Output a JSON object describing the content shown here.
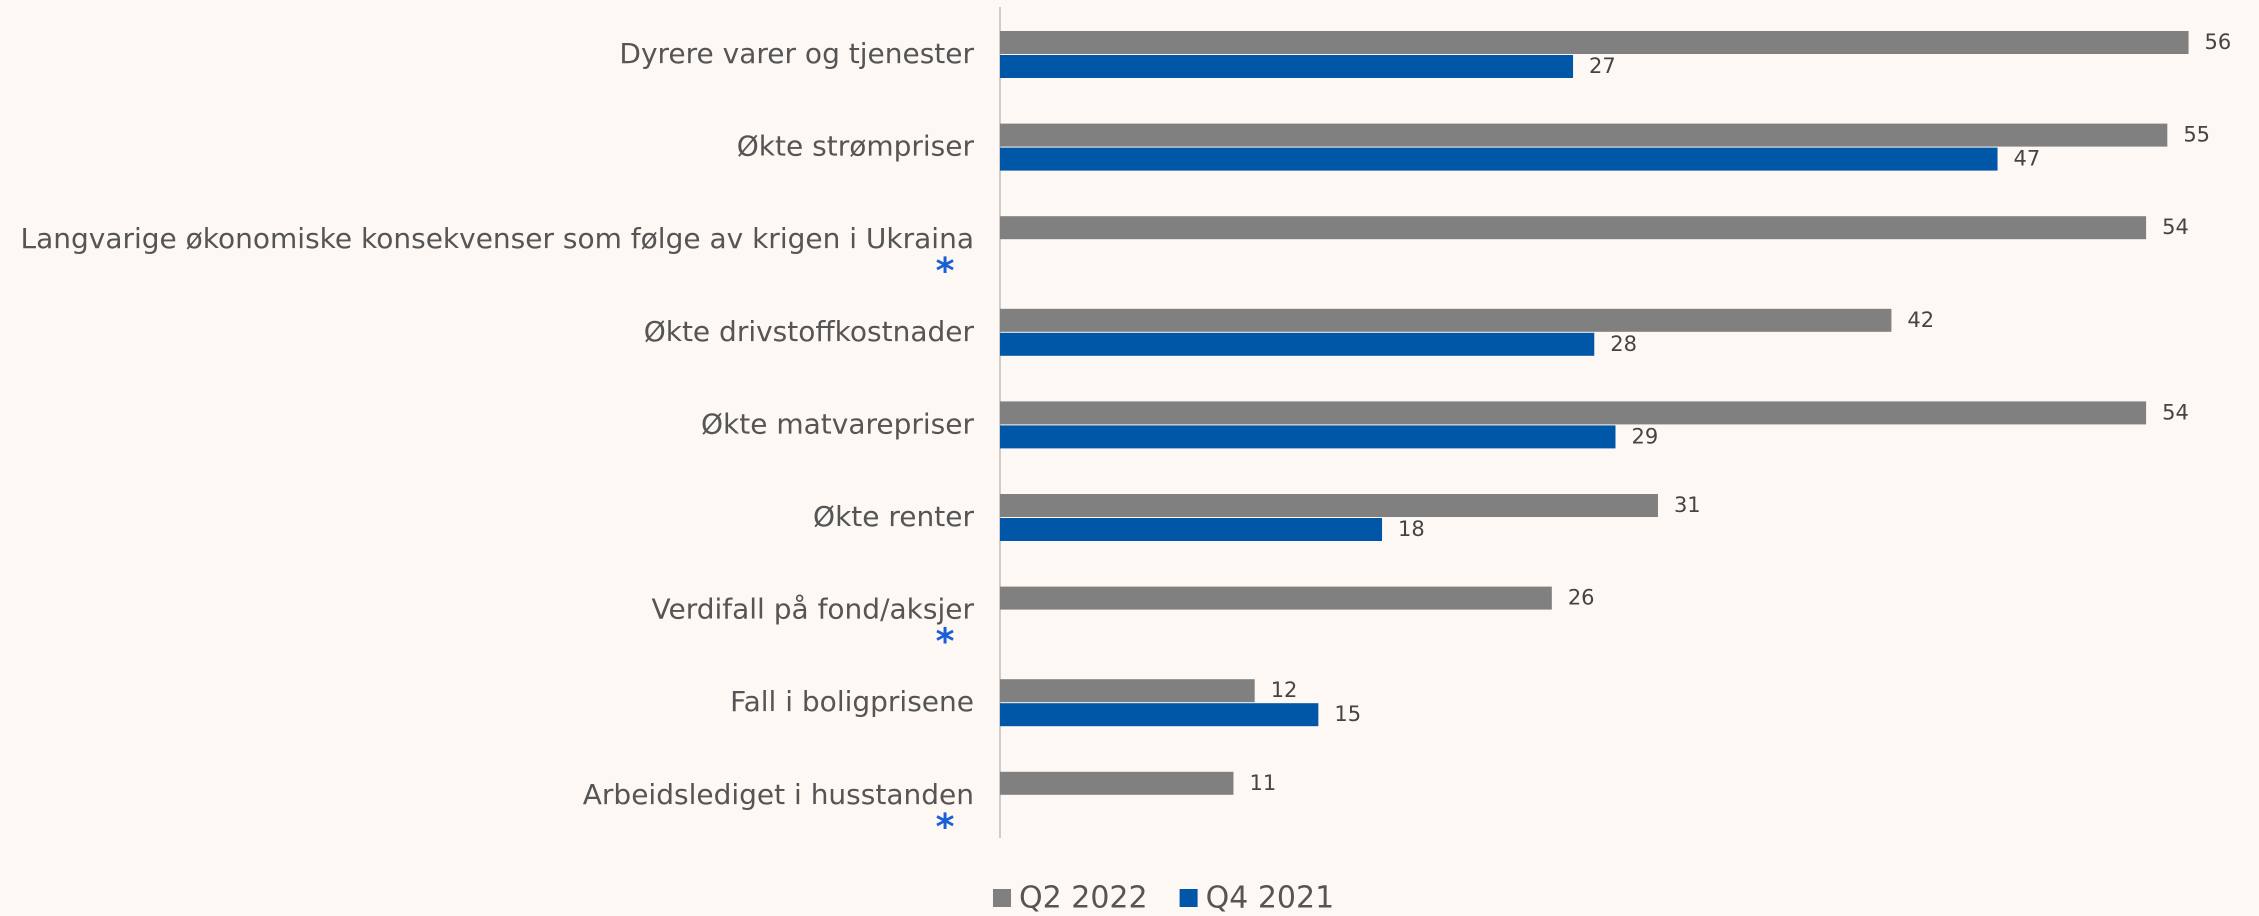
{
  "chart_data": {
    "type": "hbar",
    "categories": [
      "Dyrere varer og tjenester",
      "Økte strømpriser",
      "Langvarige økonomiske konsekvenser som følge av krigen i Ukraina",
      "Økte drivstoffkostnader",
      "Økte matvarepriser",
      "Økte renter",
      "Verdifall på fond/aksjer",
      "Fall i boligprisene",
      "Arbeidslediget i husstanden"
    ],
    "markers": [
      null,
      null,
      "*",
      null,
      null,
      null,
      "*",
      null,
      "*"
    ],
    "series": [
      {
        "name": "Q2 2022",
        "color": "#808080",
        "values": [
          56,
          55,
          54,
          42,
          54,
          31,
          26,
          12,
          11
        ]
      },
      {
        "name": "Q4 2021",
        "color": "#0057a8",
        "values": [
          27,
          47,
          null,
          28,
          29,
          18,
          null,
          15,
          null
        ]
      }
    ],
    "xlim": [
      0,
      58
    ],
    "legend": "bottom"
  }
}
